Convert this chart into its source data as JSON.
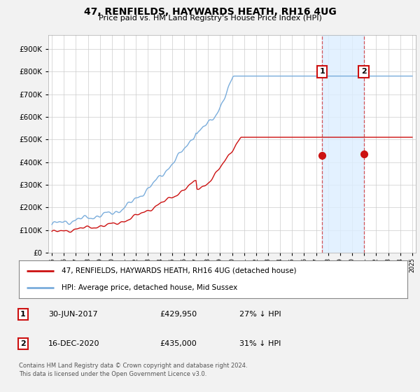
{
  "title": "47, RENFIELDS, HAYWARDS HEATH, RH16 4UG",
  "subtitle": "Price paid vs. HM Land Registry's House Price Index (HPI)",
  "ytick_values": [
    0,
    100000,
    200000,
    300000,
    400000,
    500000,
    600000,
    700000,
    800000,
    900000
  ],
  "ylim": [
    0,
    960000
  ],
  "hpi_color": "#7aaddc",
  "price_color": "#cc1111",
  "marker1_year": 2017.5,
  "marker2_year": 2020.96,
  "marker1_price": 429950,
  "marker2_price": 435000,
  "legend_entries": [
    "47, RENFIELDS, HAYWARDS HEATH, RH16 4UG (detached house)",
    "HPI: Average price, detached house, Mid Sussex"
  ],
  "table_rows": [
    [
      "1",
      "30-JUN-2017",
      "£429,950",
      "27% ↓ HPI"
    ],
    [
      "2",
      "16-DEC-2020",
      "£435,000",
      "31% ↓ HPI"
    ]
  ],
  "footnote": "Contains HM Land Registry data © Crown copyright and database right 2024.\nThis data is licensed under the Open Government Licence v3.0.",
  "background_color": "#f2f2f2",
  "plot_bg_color": "#ffffff",
  "grid_color": "#cccccc",
  "shade_color": "#ddeeff"
}
